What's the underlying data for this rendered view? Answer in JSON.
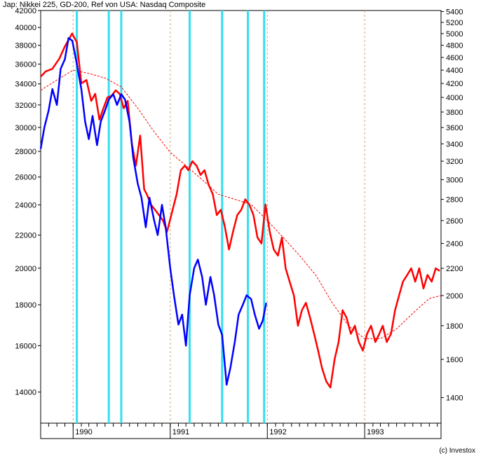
{
  "header": {
    "title": "Jap: Nikkei 225,  GD-200,  Ref von USA: Nasdaq Composite"
  },
  "credit": "(c) Investox",
  "chart_data": {
    "type": "line",
    "title": "Jap: Nikkei 225,  GD-200,  Ref von USA: Nasdaq Composite",
    "x_range": [
      "1989-09-01",
      "1993-10-15"
    ],
    "year_labels": [
      {
        "label": "1990",
        "date": "1990-01-01"
      },
      {
        "label": "1991",
        "date": "1991-01-01"
      },
      {
        "label": "1992",
        "date": "1992-01-01"
      },
      {
        "label": "1993",
        "date": "1993-01-01"
      }
    ],
    "left_axis": {
      "scale": "log",
      "ylim": [
        12800,
        42000
      ],
      "ticks": [
        14000,
        16000,
        18000,
        20000,
        22000,
        24000,
        26000,
        28000,
        30000,
        32000,
        34000,
        36000,
        38000,
        40000,
        42000
      ],
      "tick_labels": [
        "14000",
        "16000",
        "18000",
        "20000",
        "22000",
        "24000",
        "26000",
        "28000",
        "30000",
        "32000",
        "34000",
        "36000",
        "38000",
        "40000",
        "42000"
      ]
    },
    "right_axis": {
      "scale": "log",
      "ylim": [
        1280,
        5420
      ],
      "ticks": [
        1400,
        1600,
        1800,
        2000,
        2200,
        2400,
        2600,
        2800,
        3000,
        3200,
        3400,
        3600,
        3800,
        4000,
        4200,
        4400,
        4600,
        4800,
        5000,
        5200,
        5400
      ],
      "tick_labels": [
        "1400",
        "1600",
        "1800",
        "2000",
        "2200",
        "2400",
        "2600",
        "2800",
        "3000",
        "3200",
        "3400",
        "3600",
        "3800",
        "4000",
        "4200",
        "4400",
        "4600",
        "4800",
        "5000",
        "5200",
        "5400"
      ]
    },
    "vertical_markers": [
      "1990-01-15",
      "1990-05-15",
      "1990-07-01",
      "1991-03-15",
      "1991-07-15",
      "1991-10-20",
      "1991-12-20"
    ],
    "series": [
      {
        "axis": "right",
        "color": "#ff0000",
        "style": "solid",
        "x": [
          "1989-09-01",
          "1989-09-20",
          "1989-10-15",
          "1989-11-10",
          "1989-12-01",
          "1989-12-28",
          "1990-01-15",
          "1990-02-01",
          "1990-02-20",
          "1990-03-10",
          "1990-03-25",
          "1990-04-10",
          "1990-04-25",
          "1990-05-10",
          "1990-05-25",
          "1990-06-10",
          "1990-06-25",
          "1990-07-10",
          "1990-07-25",
          "1990-08-10",
          "1990-08-25",
          "1990-09-10",
          "1990-09-25",
          "1990-10-05",
          "1990-10-20",
          "1990-11-05",
          "1990-11-20",
          "1990-12-05",
          "1990-12-20",
          "1991-01-10",
          "1991-01-25",
          "1991-02-10",
          "1991-02-25",
          "1991-03-10",
          "1991-03-25",
          "1991-04-10",
          "1991-04-25",
          "1991-05-10",
          "1991-05-25",
          "1991-06-10",
          "1991-06-25",
          "1991-07-10",
          "1991-07-25",
          "1991-08-10",
          "1991-08-25",
          "1991-09-10",
          "1991-09-25",
          "1991-10-10",
          "1991-10-25",
          "1991-11-10",
          "1991-11-25",
          "1991-12-10",
          "1991-12-25",
          "1992-01-10",
          "1992-01-25",
          "1992-02-10",
          "1992-02-25",
          "1992-03-10",
          "1992-03-25",
          "1992-04-10",
          "1992-04-25",
          "1992-05-10",
          "1992-05-25",
          "1992-06-10",
          "1992-06-25",
          "1992-07-10",
          "1992-07-25",
          "1992-08-10",
          "1992-08-25",
          "1992-09-10",
          "1992-09-25",
          "1992-10-10",
          "1992-10-25",
          "1992-11-10",
          "1992-11-25",
          "1992-12-10",
          "1992-12-25",
          "1993-01-10",
          "1993-01-25",
          "1993-02-10",
          "1993-02-25",
          "1993-03-10",
          "1993-03-25",
          "1993-04-10",
          "1993-04-25",
          "1993-05-10",
          "1993-05-25",
          "1993-06-10",
          "1993-06-25",
          "1993-07-10",
          "1993-07-25",
          "1993-08-10",
          "1993-08-25",
          "1993-09-10",
          "1993-09-25",
          "1993-10-10"
        ],
        "values": [
          4300,
          4380,
          4420,
          4580,
          4780,
          5000,
          4850,
          4200,
          4250,
          3950,
          4050,
          3700,
          3850,
          4000,
          4020,
          4100,
          4050,
          3850,
          3950,
          3400,
          3150,
          3500,
          2900,
          2850,
          2750,
          2700,
          2650,
          2600,
          2500,
          2700,
          2850,
          3100,
          3150,
          3100,
          3200,
          3150,
          3050,
          3100,
          2950,
          2850,
          2650,
          2700,
          2550,
          2350,
          2500,
          2650,
          2700,
          2800,
          2750,
          2650,
          2450,
          2400,
          2750,
          2500,
          2350,
          2300,
          2450,
          2200,
          2100,
          2000,
          1800,
          1900,
          1950,
          1850,
          1750,
          1650,
          1550,
          1480,
          1450,
          1600,
          1700,
          1900,
          1850,
          1750,
          1800,
          1700,
          1650,
          1750,
          1800,
          1700,
          1750,
          1800,
          1700,
          1750,
          1900,
          2000,
          2100,
          2150,
          2200,
          2100,
          2200,
          2050,
          2150,
          2100,
          2200,
          2180
        ]
      },
      {
        "axis": "right",
        "color": "#ff0000",
        "style": "dashed",
        "x": [
          "1989-09-01",
          "1989-11-01",
          "1990-01-01",
          "1990-03-01",
          "1990-05-01",
          "1990-07-01",
          "1990-09-01",
          "1990-11-01",
          "1991-01-01",
          "1991-03-01",
          "1991-05-01",
          "1991-07-01",
          "1991-09-01",
          "1991-11-01",
          "1992-01-01",
          "1992-03-01",
          "1992-05-01",
          "1992-07-01",
          "1992-09-01",
          "1992-11-01",
          "1993-01-01",
          "1993-03-01",
          "1993-05-01",
          "1993-07-01",
          "1993-09-01",
          "1993-10-15"
        ],
        "values": [
          4100,
          4250,
          4400,
          4350,
          4280,
          4150,
          3850,
          3550,
          3300,
          3150,
          3000,
          2850,
          2800,
          2750,
          2600,
          2450,
          2300,
          2150,
          1950,
          1800,
          1720,
          1720,
          1780,
          1880,
          1980,
          2000
        ]
      },
      {
        "axis": "left",
        "color": "#0000ff",
        "style": "solid",
        "x": [
          "1989-09-01",
          "1989-09-15",
          "1989-10-01",
          "1989-10-15",
          "1989-11-01",
          "1989-11-15",
          "1989-12-01",
          "1989-12-15",
          "1989-12-29",
          "1990-01-15",
          "1990-02-01",
          "1990-02-15",
          "1990-03-01",
          "1990-03-15",
          "1990-04-01",
          "1990-04-15",
          "1990-05-01",
          "1990-05-15",
          "1990-06-01",
          "1990-06-15",
          "1990-07-01",
          "1990-07-15",
          "1990-08-01",
          "1990-08-15",
          "1990-09-01",
          "1990-09-15",
          "1990-10-01",
          "1990-10-15",
          "1990-11-01",
          "1990-11-15",
          "1990-12-01",
          "1990-12-15",
          "1991-01-01",
          "1991-01-15",
          "1991-02-01",
          "1991-02-15",
          "1991-03-01",
          "1991-03-15",
          "1991-04-01",
          "1991-04-15",
          "1991-05-01",
          "1991-05-15",
          "1991-06-01",
          "1991-06-15",
          "1991-07-01",
          "1991-07-15",
          "1991-08-01",
          "1991-08-15",
          "1991-09-01",
          "1991-09-15",
          "1991-10-01",
          "1991-10-15",
          "1991-11-01",
          "1991-11-15",
          "1991-12-01",
          "1991-12-15",
          "1991-12-28"
        ],
        "values": [
          28200,
          30000,
          31500,
          33500,
          32000,
          35500,
          36500,
          38800,
          38500,
          36000,
          33500,
          30500,
          29000,
          31000,
          28500,
          30500,
          31500,
          32500,
          33000,
          32000,
          33000,
          32500,
          30500,
          27500,
          25500,
          24500,
          22500,
          24500,
          23000,
          22000,
          24000,
          22500,
          20000,
          18500,
          17000,
          17500,
          16000,
          18500,
          20000,
          20500,
          19500,
          18000,
          19500,
          18500,
          17000,
          16500,
          14300,
          15000,
          16200,
          17500,
          18000,
          18500,
          18300,
          17500,
          16800,
          17200,
          18100
        ]
      }
    ]
  }
}
